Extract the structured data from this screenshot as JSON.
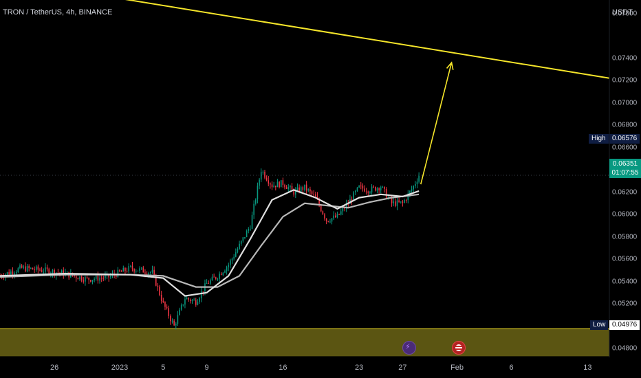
{
  "header": {
    "symbol": "TRON / TetherUS, 4h, BINANCE"
  },
  "axis": {
    "currency": "USDT",
    "y_ticks": [
      0.078,
      0.074,
      0.072,
      0.07,
      0.068,
      0.066,
      0.064,
      0.062,
      0.06,
      0.058,
      0.056,
      0.054,
      0.052,
      0.05,
      0.048
    ],
    "y_tick_labels": [
      "0.07800",
      "0.07400",
      "0.07200",
      "0.07000",
      "0.06800",
      "0.06600",
      "0.06400",
      "0.06200",
      "0.06000",
      "0.05800",
      "0.05600",
      "0.05400",
      "0.05200",
      "0.05000",
      "0.04800"
    ],
    "x_ticks": [
      "26",
      "2023",
      "5",
      "9",
      "16",
      "23",
      "27",
      "Feb",
      "6",
      "13"
    ]
  },
  "markers": {
    "high_label": "High",
    "high_value": "0.06576",
    "low_label": "Low",
    "low_value": "0.04976",
    "last_price": "0.06351",
    "countdown": "01:07:55"
  },
  "colors": {
    "up": "#089981",
    "down": "#f23645",
    "trend": "#f5e52a",
    "zone": "#5b5512",
    "ma_fast": "#e0e0e0",
    "ma_slow": "#b8b8b8"
  },
  "chart_data": {
    "type": "candlestick",
    "title": "TRON / TetherUS, 4h, BINANCE",
    "ylim": [
      0.0472,
      0.0792
    ],
    "x_range": [
      "2022-12-21",
      "2023-02-15"
    ],
    "x_ticks": [
      {
        "label": "26",
        "date": "2022-12-26"
      },
      {
        "label": "2023",
        "date": "2023-01-01"
      },
      {
        "label": "5",
        "date": "2023-01-05"
      },
      {
        "label": "9",
        "date": "2023-01-09"
      },
      {
        "label": "16",
        "date": "2023-01-16"
      },
      {
        "label": "23",
        "date": "2023-01-23"
      },
      {
        "label": "27",
        "date": "2023-01-27"
      },
      {
        "label": "Feb",
        "date": "2023-02-01"
      },
      {
        "label": "6",
        "date": "2023-02-06"
      },
      {
        "label": "13",
        "date": "2023-02-13"
      }
    ],
    "price_path": [
      [
        "2022-12-21",
        0.0545
      ],
      [
        "2022-12-23",
        0.0552
      ],
      [
        "2022-12-25",
        0.055
      ],
      [
        "2022-12-27",
        0.0547
      ],
      [
        "2022-12-29",
        0.0542
      ],
      [
        "2022-12-31",
        0.0544
      ],
      [
        "2023-01-02",
        0.0552
      ],
      [
        "2023-01-04",
        0.0548
      ],
      [
        "2023-01-05",
        0.052
      ],
      [
        "2023-01-06",
        0.05
      ],
      [
        "2023-01-07",
        0.0525
      ],
      [
        "2023-01-08",
        0.0522
      ],
      [
        "2023-01-09",
        0.0538
      ],
      [
        "2023-01-10",
        0.0545
      ],
      [
        "2023-01-11",
        0.0555
      ],
      [
        "2023-01-12",
        0.0572
      ],
      [
        "2023-01-13",
        0.059
      ],
      [
        "2023-01-14",
        0.064
      ],
      [
        "2023-01-15",
        0.0626
      ],
      [
        "2023-01-16",
        0.0628
      ],
      [
        "2023-01-17",
        0.062
      ],
      [
        "2023-01-18",
        0.0624
      ],
      [
        "2023-01-19",
        0.0615
      ],
      [
        "2023-01-20",
        0.0595
      ],
      [
        "2023-01-21",
        0.0598
      ],
      [
        "2023-01-22",
        0.061
      ],
      [
        "2023-01-23",
        0.0624
      ],
      [
        "2023-01-24",
        0.0622
      ],
      [
        "2023-01-25",
        0.0625
      ],
      [
        "2023-01-26",
        0.061
      ],
      [
        "2023-01-27",
        0.061
      ],
      [
        "2023-01-28",
        0.0625
      ],
      [
        "2023-01-28T12:00",
        0.0635
      ]
    ],
    "high": 0.06576,
    "low": 0.04976,
    "last": 0.06351,
    "ma_fast_path": [
      [
        "2022-12-21",
        0.0545
      ],
      [
        "2022-12-27",
        0.0547
      ],
      [
        "2023-01-02",
        0.0546
      ],
      [
        "2023-01-05",
        0.0543
      ],
      [
        "2023-01-07",
        0.0527
      ],
      [
        "2023-01-09",
        0.053
      ],
      [
        "2023-01-11",
        0.0545
      ],
      [
        "2023-01-13",
        0.0578
      ],
      [
        "2023-01-15",
        0.0613
      ],
      [
        "2023-01-17",
        0.0622
      ],
      [
        "2023-01-19",
        0.0615
      ],
      [
        "2023-01-21",
        0.0605
      ],
      [
        "2023-01-23",
        0.0615
      ],
      [
        "2023-01-25",
        0.0618
      ],
      [
        "2023-01-27",
        0.0616
      ],
      [
        "2023-01-28T12:00",
        0.0621
      ]
    ],
    "ma_slow_path": [
      [
        "2022-12-21",
        0.0544
      ],
      [
        "2022-12-27",
        0.0546
      ],
      [
        "2023-01-02",
        0.0546
      ],
      [
        "2023-01-05",
        0.0545
      ],
      [
        "2023-01-08",
        0.0535
      ],
      [
        "2023-01-10",
        0.0535
      ],
      [
        "2023-01-12",
        0.0545
      ],
      [
        "2023-01-14",
        0.0572
      ],
      [
        "2023-01-16",
        0.0598
      ],
      [
        "2023-01-18",
        0.061
      ],
      [
        "2023-01-20",
        0.0608
      ],
      [
        "2023-01-22",
        0.0606
      ],
      [
        "2023-01-24",
        0.0611
      ],
      [
        "2023-01-26",
        0.0615
      ],
      [
        "2023-01-28T12:00",
        0.0618
      ]
    ],
    "trendline": [
      [
        "2022-12-31",
        0.0795
      ],
      [
        "2023-02-15",
        0.0722
      ]
    ],
    "projection_arrow": [
      [
        "2023-01-28T16:00",
        0.0627
      ],
      [
        "2023-01-31T12:00",
        0.0736
      ]
    ],
    "support_zone": [
      0.0473,
      0.04976
    ],
    "current_price_line": 0.06351
  }
}
